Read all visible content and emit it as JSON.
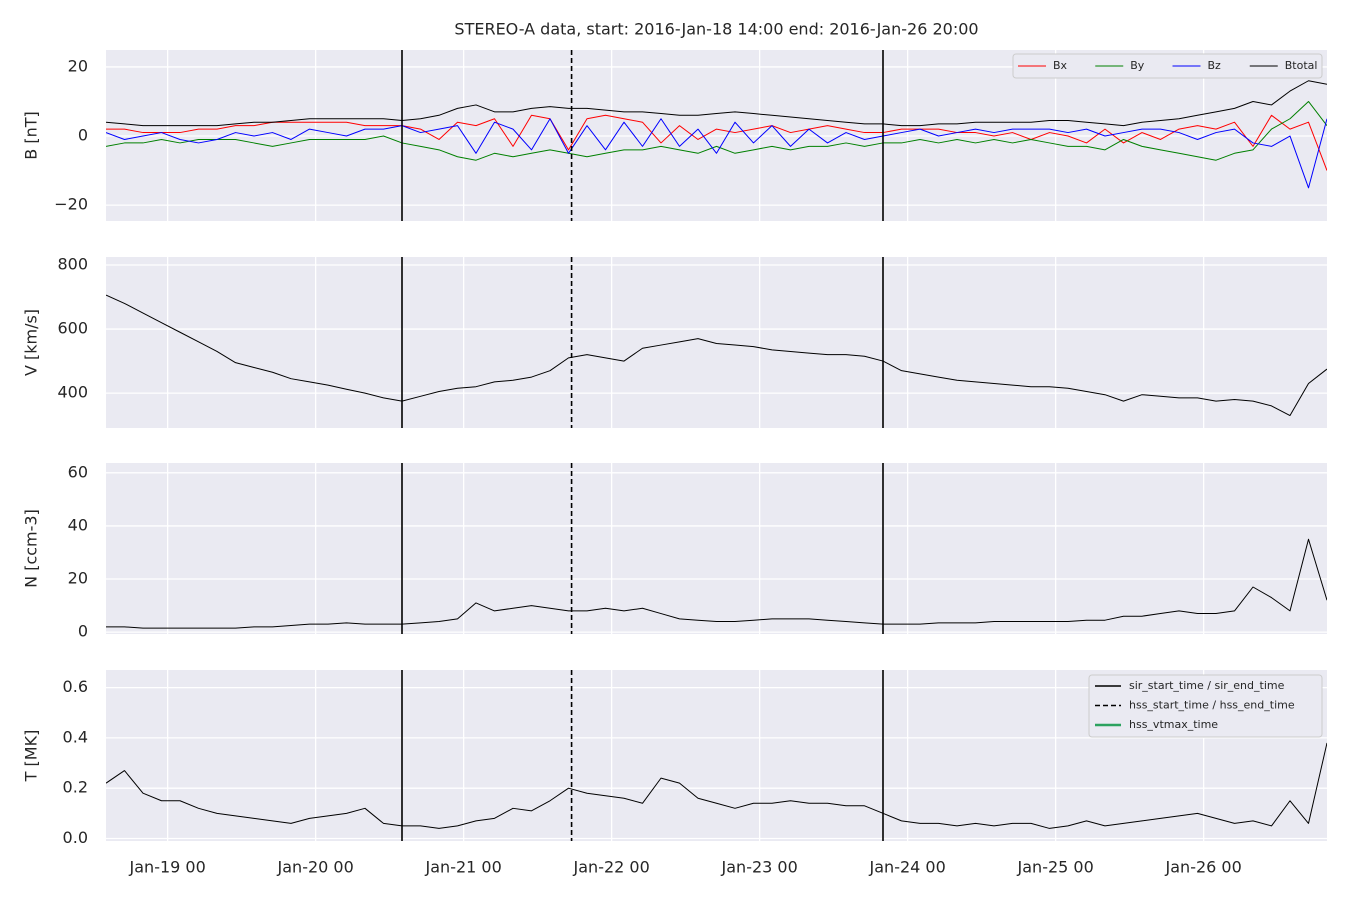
{
  "chart_data": [
    {
      "type": "line",
      "title": "STEREO-A data, start: 2016-Jan-18 14:00  end: 2016-Jan-26 20:00",
      "ylabel": "B [nT]",
      "x": [
        "Jan-18 14",
        "Jan-18 17",
        "Jan-18 20",
        "Jan-18 23",
        "Jan-19 02",
        "Jan-19 05",
        "Jan-19 08",
        "Jan-19 11",
        "Jan-19 14",
        "Jan-19 17",
        "Jan-19 20",
        "Jan-19 23",
        "Jan-20 02",
        "Jan-20 05",
        "Jan-20 08",
        "Jan-20 11",
        "Jan-20 14",
        "Jan-20 17",
        "Jan-20 20",
        "Jan-20 23",
        "Jan-21 02",
        "Jan-21 05",
        "Jan-21 08",
        "Jan-21 11",
        "Jan-21 14",
        "Jan-21 17",
        "Jan-21 20",
        "Jan-21 23",
        "Jan-22 02",
        "Jan-22 05",
        "Jan-22 08",
        "Jan-22 11",
        "Jan-22 14",
        "Jan-22 17",
        "Jan-22 20",
        "Jan-22 23",
        "Jan-23 02",
        "Jan-23 05",
        "Jan-23 08",
        "Jan-23 11",
        "Jan-23 14",
        "Jan-23 17",
        "Jan-23 20",
        "Jan-23 23",
        "Jan-24 02",
        "Jan-24 05",
        "Jan-24 08",
        "Jan-24 11",
        "Jan-24 14",
        "Jan-24 17",
        "Jan-24 20",
        "Jan-24 23",
        "Jan-25 02",
        "Jan-25 05",
        "Jan-25 08",
        "Jan-25 11",
        "Jan-25 14",
        "Jan-25 17",
        "Jan-25 20",
        "Jan-25 23",
        "Jan-26 02",
        "Jan-26 05",
        "Jan-26 08",
        "Jan-26 11",
        "Jan-26 14",
        "Jan-26 17",
        "Jan-26 20"
      ],
      "series": [
        {
          "name": "Bx",
          "color": "#ff0000",
          "values": [
            2,
            2,
            1,
            1,
            1,
            2,
            2,
            3,
            3,
            4,
            4,
            4,
            4,
            4,
            3,
            3,
            3,
            2,
            -1,
            4,
            3,
            5,
            -3,
            6,
            5,
            -4,
            5,
            6,
            5,
            4,
            -2,
            3,
            -1,
            2,
            1,
            2,
            3,
            1,
            2,
            3,
            2,
            1,
            1,
            2,
            2,
            2,
            1,
            1,
            0,
            1,
            -1,
            1,
            0,
            -2,
            2,
            -2,
            1,
            -1,
            2,
            3,
            2,
            4,
            -3,
            6,
            2,
            4,
            -10
          ]
        },
        {
          "name": "By",
          "color": "#008000",
          "values": [
            -3,
            -2,
            -2,
            -1,
            -2,
            -1,
            -1,
            -1,
            -2,
            -3,
            -2,
            -1,
            -1,
            -1,
            -1,
            0,
            -2,
            -3,
            -4,
            -6,
            -7,
            -5,
            -6,
            -5,
            -4,
            -5,
            -6,
            -5,
            -4,
            -4,
            -3,
            -4,
            -5,
            -3,
            -5,
            -4,
            -3,
            -4,
            -3,
            -3,
            -2,
            -3,
            -2,
            -2,
            -1,
            -2,
            -1,
            -2,
            -1,
            -2,
            -1,
            -2,
            -3,
            -3,
            -4,
            -1,
            -3,
            -4,
            -5,
            -6,
            -7,
            -5,
            -4,
            2,
            5,
            10,
            3
          ]
        },
        {
          "name": "Bz",
          "color": "#0000ff",
          "values": [
            1,
            -1,
            0,
            1,
            -1,
            -2,
            -1,
            1,
            0,
            1,
            -1,
            2,
            1,
            0,
            2,
            2,
            3,
            1,
            2,
            3,
            -5,
            4,
            2,
            -4,
            5,
            -5,
            3,
            -4,
            4,
            -3,
            5,
            -3,
            2,
            -5,
            4,
            -2,
            3,
            -3,
            2,
            -2,
            1,
            -1,
            0,
            1,
            2,
            0,
            1,
            2,
            1,
            2,
            2,
            2,
            1,
            2,
            0,
            1,
            2,
            2,
            1,
            -1,
            1,
            2,
            -2,
            -3,
            0,
            -15,
            5
          ]
        },
        {
          "name": "Btotal",
          "color": "#000000",
          "values": [
            4,
            3.5,
            3,
            3,
            3,
            3,
            3,
            3.5,
            4,
            4,
            4.5,
            5,
            5,
            5,
            5,
            5,
            4.5,
            5,
            6,
            8,
            9,
            7,
            7,
            8,
            8.5,
            8,
            8,
            7.5,
            7,
            7,
            6.5,
            6,
            6,
            6.5,
            7,
            6.5,
            6,
            5.5,
            5,
            4.5,
            4,
            3.5,
            3.5,
            3,
            3,
            3.5,
            3.5,
            4,
            4,
            4,
            4,
            4.5,
            4.5,
            4,
            3.5,
            3,
            4,
            4.5,
            5,
            6,
            7,
            8,
            10,
            9,
            13,
            16,
            15
          ]
        }
      ],
      "xlim": [
        "Jan-18 14",
        "Jan-26 20"
      ],
      "xticks": [
        "Jan-19 00",
        "Jan-20 00",
        "Jan-21 00",
        "Jan-22 00",
        "Jan-23 00",
        "Jan-24 00",
        "Jan-25 00",
        "Jan-26 00"
      ],
      "ylim": [
        -24.6,
        24.9
      ],
      "yticks": [
        {
          "value": -20,
          "label": "−20"
        },
        0,
        20
      ],
      "grid": true,
      "legend": "upper right"
    },
    {
      "type": "line",
      "ylabel": "V [km/s]",
      "x": [
        "Jan-18 14",
        "Jan-18 17",
        "Jan-18 20",
        "Jan-18 23",
        "Jan-19 02",
        "Jan-19 05",
        "Jan-19 08",
        "Jan-19 11",
        "Jan-19 14",
        "Jan-19 17",
        "Jan-19 20",
        "Jan-19 23",
        "Jan-20 02",
        "Jan-20 05",
        "Jan-20 08",
        "Jan-20 11",
        "Jan-20 14",
        "Jan-20 17",
        "Jan-20 20",
        "Jan-20 23",
        "Jan-21 02",
        "Jan-21 05",
        "Jan-21 08",
        "Jan-21 11",
        "Jan-21 14",
        "Jan-21 17",
        "Jan-21 20",
        "Jan-21 23",
        "Jan-22 02",
        "Jan-22 05",
        "Jan-22 08",
        "Jan-22 11",
        "Jan-22 14",
        "Jan-22 17",
        "Jan-22 20",
        "Jan-22 23",
        "Jan-23 02",
        "Jan-23 05",
        "Jan-23 08",
        "Jan-23 11",
        "Jan-23 14",
        "Jan-23 17",
        "Jan-23 20",
        "Jan-23 23",
        "Jan-24 02",
        "Jan-24 05",
        "Jan-24 08",
        "Jan-24 11",
        "Jan-24 14",
        "Jan-24 17",
        "Jan-24 20",
        "Jan-24 23",
        "Jan-25 02",
        "Jan-25 05",
        "Jan-25 08",
        "Jan-25 11",
        "Jan-25 14",
        "Jan-25 17",
        "Jan-25 20",
        "Jan-25 23",
        "Jan-26 02",
        "Jan-26 05",
        "Jan-26 08",
        "Jan-26 11",
        "Jan-26 14",
        "Jan-26 17",
        "Jan-26 20"
      ],
      "series": [
        {
          "color": "#000000",
          "values": [
            706,
            680,
            650,
            620,
            590,
            560,
            530,
            495,
            480,
            465,
            445,
            435,
            425,
            412,
            400,
            385,
            375,
            390,
            405,
            415,
            420,
            435,
            440,
            450,
            470,
            510,
            520,
            510,
            500,
            540,
            550,
            560,
            570,
            555,
            550,
            545,
            535,
            530,
            525,
            520,
            520,
            515,
            500,
            470,
            460,
            450,
            440,
            435,
            430,
            425,
            420,
            420,
            415,
            405,
            395,
            375,
            395,
            390,
            385,
            385,
            375,
            380,
            375,
            360,
            330,
            430,
            475
          ]
        }
      ],
      "xlim": [
        "Jan-18 14",
        "Jan-26 20"
      ],
      "xticks": [
        "Jan-19 00",
        "Jan-20 00",
        "Jan-21 00",
        "Jan-22 00",
        "Jan-23 00",
        "Jan-24 00",
        "Jan-25 00",
        "Jan-26 00"
      ],
      "ylim": [
        291,
        825
      ],
      "yticks": [
        400,
        600,
        800
      ],
      "grid": true
    },
    {
      "type": "line",
      "ylabel": "N [ccm-3]",
      "x": [
        "Jan-18 14",
        "Jan-18 17",
        "Jan-18 20",
        "Jan-18 23",
        "Jan-19 02",
        "Jan-19 05",
        "Jan-19 08",
        "Jan-19 11",
        "Jan-19 14",
        "Jan-19 17",
        "Jan-19 20",
        "Jan-19 23",
        "Jan-20 02",
        "Jan-20 05",
        "Jan-20 08",
        "Jan-20 11",
        "Jan-20 14",
        "Jan-20 17",
        "Jan-20 20",
        "Jan-20 23",
        "Jan-21 02",
        "Jan-21 05",
        "Jan-21 08",
        "Jan-21 11",
        "Jan-21 14",
        "Jan-21 17",
        "Jan-21 20",
        "Jan-21 23",
        "Jan-22 02",
        "Jan-22 05",
        "Jan-22 08",
        "Jan-22 11",
        "Jan-22 14",
        "Jan-22 17",
        "Jan-22 20",
        "Jan-22 23",
        "Jan-23 02",
        "Jan-23 05",
        "Jan-23 08",
        "Jan-23 11",
        "Jan-23 14",
        "Jan-23 17",
        "Jan-23 20",
        "Jan-23 23",
        "Jan-24 02",
        "Jan-24 05",
        "Jan-24 08",
        "Jan-24 11",
        "Jan-24 14",
        "Jan-24 17",
        "Jan-24 20",
        "Jan-24 23",
        "Jan-25 02",
        "Jan-25 05",
        "Jan-25 08",
        "Jan-25 11",
        "Jan-25 14",
        "Jan-25 17",
        "Jan-25 20",
        "Jan-25 23",
        "Jan-26 02",
        "Jan-26 05",
        "Jan-26 08",
        "Jan-26 11",
        "Jan-26 14",
        "Jan-26 17",
        "Jan-26 20"
      ],
      "series": [
        {
          "color": "#000000",
          "values": [
            2,
            2,
            1.5,
            1.5,
            1.5,
            1.5,
            1.5,
            1.5,
            2,
            2,
            2.5,
            3,
            3,
            3.5,
            3,
            3,
            3,
            3.5,
            4,
            5,
            11,
            8,
            9,
            10,
            9,
            8,
            8,
            9,
            8,
            9,
            7,
            5,
            4.5,
            4,
            4,
            4.5,
            5,
            5,
            5,
            4.5,
            4,
            3.5,
            3,
            3,
            3,
            3.5,
            3.5,
            3.5,
            4,
            4,
            4,
            4,
            4,
            4.5,
            4.5,
            6,
            6,
            7,
            8,
            7,
            7,
            8,
            17,
            13,
            8,
            35,
            12
          ]
        }
      ],
      "xlim": [
        "Jan-18 14",
        "Jan-26 20"
      ],
      "xticks": [
        "Jan-19 00",
        "Jan-20 00",
        "Jan-21 00",
        "Jan-22 00",
        "Jan-23 00",
        "Jan-24 00",
        "Jan-25 00",
        "Jan-26 00"
      ],
      "ylim": [
        -0.7,
        63.7
      ],
      "yticks": [
        0,
        20,
        40,
        60
      ],
      "grid": true
    },
    {
      "type": "line",
      "ylabel": "T [MK]",
      "x": [
        "Jan-18 14",
        "Jan-18 17",
        "Jan-18 20",
        "Jan-18 23",
        "Jan-19 02",
        "Jan-19 05",
        "Jan-19 08",
        "Jan-19 11",
        "Jan-19 14",
        "Jan-19 17",
        "Jan-19 20",
        "Jan-19 23",
        "Jan-20 02",
        "Jan-20 05",
        "Jan-20 08",
        "Jan-20 11",
        "Jan-20 14",
        "Jan-20 17",
        "Jan-20 20",
        "Jan-20 23",
        "Jan-21 02",
        "Jan-21 05",
        "Jan-21 08",
        "Jan-21 11",
        "Jan-21 14",
        "Jan-21 17",
        "Jan-21 20",
        "Jan-21 23",
        "Jan-22 02",
        "Jan-22 05",
        "Jan-22 08",
        "Jan-22 11",
        "Jan-22 14",
        "Jan-22 17",
        "Jan-22 20",
        "Jan-22 23",
        "Jan-23 02",
        "Jan-23 05",
        "Jan-23 08",
        "Jan-23 11",
        "Jan-23 14",
        "Jan-23 17",
        "Jan-23 20",
        "Jan-23 23",
        "Jan-24 02",
        "Jan-24 05",
        "Jan-24 08",
        "Jan-24 11",
        "Jan-24 14",
        "Jan-24 17",
        "Jan-24 20",
        "Jan-24 23",
        "Jan-25 02",
        "Jan-25 05",
        "Jan-25 08",
        "Jan-25 11",
        "Jan-25 14",
        "Jan-25 17",
        "Jan-25 20",
        "Jan-25 23",
        "Jan-26 02",
        "Jan-26 05",
        "Jan-26 08",
        "Jan-26 11",
        "Jan-26 14",
        "Jan-26 17",
        "Jan-26 20"
      ],
      "series": [
        {
          "color": "#000000",
          "values": [
            0.22,
            0.27,
            0.18,
            0.15,
            0.15,
            0.12,
            0.1,
            0.09,
            0.08,
            0.07,
            0.06,
            0.08,
            0.09,
            0.1,
            0.12,
            0.06,
            0.05,
            0.05,
            0.04,
            0.05,
            0.07,
            0.08,
            0.12,
            0.11,
            0.15,
            0.2,
            0.18,
            0.17,
            0.16,
            0.14,
            0.24,
            0.22,
            0.16,
            0.14,
            0.12,
            0.14,
            0.14,
            0.15,
            0.14,
            0.14,
            0.13,
            0.13,
            0.1,
            0.07,
            0.06,
            0.06,
            0.05,
            0.06,
            0.05,
            0.06,
            0.06,
            0.04,
            0.05,
            0.07,
            0.05,
            0.06,
            0.07,
            0.08,
            0.09,
            0.1,
            0.08,
            0.06,
            0.07,
            0.05,
            0.15,
            0.06,
            0.38
          ]
        }
      ],
      "xlim": [
        "Jan-18 14",
        "Jan-26 20"
      ],
      "xticks": [
        "Jan-19 00",
        "Jan-20 00",
        "Jan-21 00",
        "Jan-22 00",
        "Jan-23 00",
        "Jan-24 00",
        "Jan-25 00",
        "Jan-26 00"
      ],
      "ylim": [
        -0.01,
        0.67
      ],
      "yticks": [
        {
          "value": 0,
          "label": "0.0"
        },
        0.2,
        0.4,
        0.6
      ],
      "grid": true,
      "legend": "upper right",
      "events": [
        {
          "name": "sir_start_time / sir_end_time",
          "style": "solid",
          "color": "#000000",
          "x": [
            "Jan-20 14",
            "Jan-23 20"
          ]
        },
        {
          "name": "hss_start_time / hss_end_time",
          "style": "dashed",
          "color": "#000000",
          "x": [
            "Jan-21 17:30"
          ]
        },
        {
          "name": "hss_vtmax_time",
          "style": "solid",
          "color": "#2ca25f",
          "x": []
        }
      ]
    }
  ]
}
